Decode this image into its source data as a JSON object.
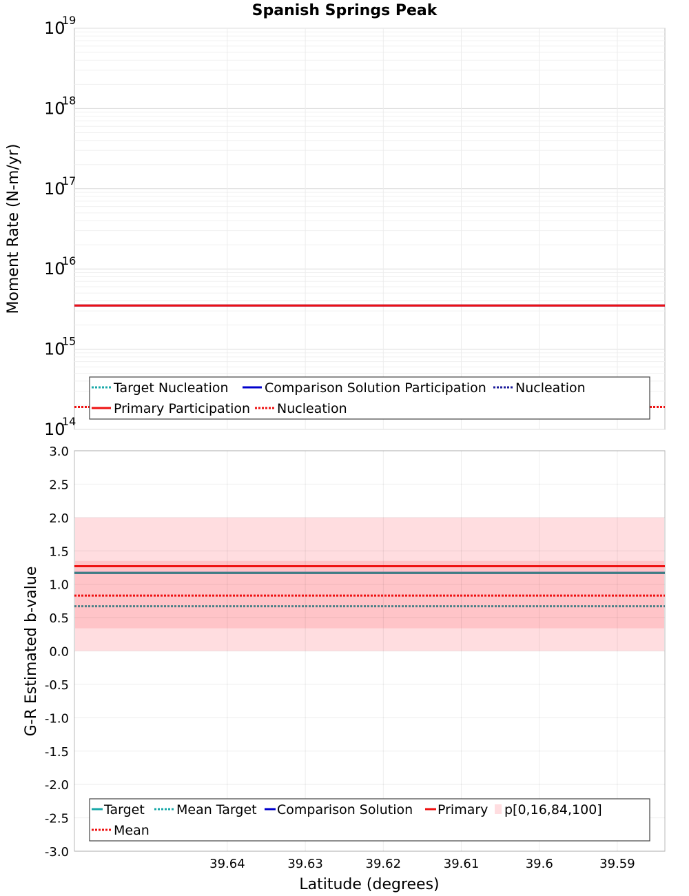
{
  "chart_data": [
    {
      "type": "line",
      "title": "Spanish Springs Peak",
      "ylabel": "Moment Rate (N-m/yr)",
      "yscale": "log",
      "ylim": [
        100000000000000.0,
        1e+19
      ],
      "y_ticks": [
        {
          "base": "10",
          "exp": "14",
          "value": 100000000000000.0
        },
        {
          "base": "10",
          "exp": "15",
          "value": 1000000000000000.0
        },
        {
          "base": "10",
          "exp": "16",
          "value": 1e+16
        },
        {
          "base": "10",
          "exp": "17",
          "value": 1e+17
        },
        {
          "base": "10",
          "exp": "18",
          "value": 1e+18
        },
        {
          "base": "10",
          "exp": "19",
          "value": 1e+19
        }
      ],
      "xlim": [
        39.6596,
        39.5839
      ],
      "series": [
        {
          "name": "Target Nucleation",
          "style": "dotted",
          "color": "#1aa9a9",
          "values": [
            190000000000000.0,
            190000000000000.0
          ]
        },
        {
          "name": "Comparison Solution Participation",
          "style": "solid",
          "color": "#0000cc",
          "values": [
            3500000000000000.0,
            3500000000000000.0
          ]
        },
        {
          "name": "Nucleation",
          "style": "dotted",
          "color": "#1a1a99",
          "values": [
            190000000000000.0,
            190000000000000.0
          ]
        },
        {
          "name": "Primary Participation",
          "style": "solid",
          "color": "#ee1111",
          "values": [
            3500000000000000.0,
            3500000000000000.0
          ]
        },
        {
          "name": "Nucleation",
          "style": "dotted",
          "color": "#ee1111",
          "values": [
            190000000000000.0,
            190000000000000.0
          ]
        }
      ],
      "legend": {
        "position": "bottom",
        "rows": [
          [
            0,
            1,
            2
          ],
          [
            3,
            4
          ]
        ]
      }
    },
    {
      "type": "line",
      "xlabel": "Latitude (degrees)",
      "ylabel": "G-R Estimated b-value",
      "ylim": [
        -3.0,
        3.0
      ],
      "y_ticks": [
        "-3.0",
        "-2.5",
        "-2.0",
        "-1.5",
        "-1.0",
        "-0.5",
        "0.0",
        "0.5",
        "1.0",
        "1.5",
        "2.0",
        "2.5",
        "3.0"
      ],
      "xlim": [
        39.6596,
        39.5839
      ],
      "x_ticks": [
        "39.64",
        "39.63",
        "39.62",
        "39.61",
        "39.6",
        "39.59"
      ],
      "x_tick_values": [
        39.64,
        39.63,
        39.62,
        39.61,
        39.6,
        39.59
      ],
      "bands": [
        {
          "name": "p[0,16,84,100]",
          "outer": [
            0.0,
            2.0
          ],
          "inner": [
            0.34,
            1.35
          ],
          "outer_color": "#ffdde0",
          "inner_color": "#ffc4c8"
        }
      ],
      "series": [
        {
          "name": "Target",
          "style": "solid",
          "color": "#1aa9a9",
          "values": [
            1.17,
            1.17
          ]
        },
        {
          "name": "Mean Target",
          "style": "dotted",
          "color": "#1aa9a9",
          "values": [
            0.67,
            0.67
          ]
        },
        {
          "name": "Comparison Solution",
          "style": "solid",
          "color": "#0000cc",
          "values": [
            1.17,
            1.17
          ]
        },
        {
          "name": "Primary",
          "style": "solid",
          "color": "#ee1111",
          "values": [
            1.27,
            1.27
          ]
        },
        {
          "name": "Mean",
          "style": "dotted",
          "color": "#ee1111",
          "values": [
            0.83,
            0.83
          ]
        }
      ],
      "legend": {
        "position": "bottom",
        "rows": [
          [
            "Target",
            "Mean Target",
            "Comparison Solution",
            "Primary",
            "p[0,16,84,100]"
          ],
          [
            "Mean"
          ]
        ]
      }
    }
  ]
}
